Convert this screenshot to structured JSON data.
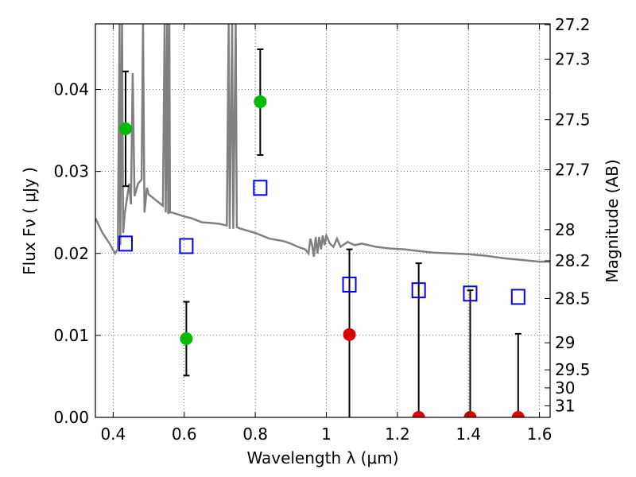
{
  "chart_data": {
    "type": "scatter",
    "xlabel": "Wavelength  λ (μm)",
    "ylabel": "Flux  Fν  ( μJy )",
    "y2label": "Magnitude (AB)",
    "xlim": [
      0.35,
      1.63
    ],
    "ylim": [
      0.0,
      0.048
    ],
    "grid": true,
    "grid_style": "dotted",
    "x_ticks": [
      0.4,
      0.6,
      0.8,
      1.0,
      1.2,
      1.4,
      1.6
    ],
    "x_tick_labels": [
      "0.4",
      "0.6",
      "0.8",
      "1",
      "1.2",
      "1.4",
      "1.6"
    ],
    "y_ticks": [
      0.0,
      0.01,
      0.02,
      0.03,
      0.04
    ],
    "y_tick_labels": [
      "0.00",
      "0.01",
      "0.02",
      "0.03",
      "0.04"
    ],
    "y2_ticks": [
      {
        "label": "27.2",
        "flux": 0.0479
      },
      {
        "label": "27.3",
        "flux": 0.0437
      },
      {
        "label": "27.5",
        "flux": 0.0363
      },
      {
        "label": "27.7",
        "flux": 0.0302
      },
      {
        "label": "28",
        "flux": 0.0229
      },
      {
        "label": "28.2",
        "flux": 0.0191
      },
      {
        "label": "28.5",
        "flux": 0.0145
      },
      {
        "label": "29",
        "flux": 0.0091
      },
      {
        "label": "29.5",
        "flux": 0.0058
      },
      {
        "label": "30",
        "flux": 0.0036
      },
      {
        "label": "31",
        "flux": 0.0014
      }
    ],
    "series": [
      {
        "marker": "filled-circle",
        "color": "#00bb00",
        "points": [
          {
            "x": 0.435,
            "y": 0.0352,
            "err_low": 0.0282,
            "err_high": 0.0422
          },
          {
            "x": 0.606,
            "y": 0.0096,
            "err_low": 0.0051,
            "err_high": 0.0141
          },
          {
            "x": 0.814,
            "y": 0.0385,
            "err_low": 0.032,
            "err_high": 0.0449
          }
        ]
      },
      {
        "marker": "filled-circle",
        "color": "#dd0000",
        "points": [
          {
            "x": 1.065,
            "y": 0.0101,
            "err_low": 0.0,
            "err_high": 0.0205
          },
          {
            "x": 1.26,
            "y": 0.0,
            "err_low": 0.0,
            "err_high": 0.0188
          },
          {
            "x": 1.405,
            "y": 0.0,
            "err_low": 0.0,
            "err_high": 0.0155
          },
          {
            "x": 1.54,
            "y": 0.0,
            "err_low": 0.0,
            "err_high": 0.0102
          }
        ]
      },
      {
        "marker": "open-square",
        "color": "#0000ee",
        "points": [
          {
            "x": 0.435,
            "y": 0.0212
          },
          {
            "x": 0.606,
            "y": 0.0209
          },
          {
            "x": 0.814,
            "y": 0.028
          },
          {
            "x": 1.065,
            "y": 0.0162
          },
          {
            "x": 1.26,
            "y": 0.0155
          },
          {
            "x": 1.405,
            "y": 0.0151
          },
          {
            "x": 1.54,
            "y": 0.0147
          }
        ]
      }
    ],
    "model_spectrum": {
      "color": "#808080",
      "points": [
        [
          0.35,
          0.0243
        ],
        [
          0.37,
          0.0225
        ],
        [
          0.39,
          0.0212
        ],
        [
          0.405,
          0.02
        ],
        [
          0.413,
          0.0205
        ],
        [
          0.418,
          0.048
        ],
        [
          0.42,
          0.021
        ],
        [
          0.425,
          0.048
        ],
        [
          0.428,
          0.0225
        ],
        [
          0.433,
          0.025
        ],
        [
          0.44,
          0.027
        ],
        [
          0.445,
          0.0285
        ],
        [
          0.45,
          0.026
        ],
        [
          0.455,
          0.042
        ],
        [
          0.46,
          0.027
        ],
        [
          0.47,
          0.0285
        ],
        [
          0.48,
          0.029
        ],
        [
          0.484,
          0.048
        ],
        [
          0.488,
          0.025
        ],
        [
          0.495,
          0.028
        ],
        [
          0.5,
          0.0272
        ],
        [
          0.52,
          0.0265
        ],
        [
          0.54,
          0.0258
        ],
        [
          0.545,
          0.048
        ],
        [
          0.548,
          0.025
        ],
        [
          0.552,
          0.048
        ],
        [
          0.555,
          0.0248
        ],
        [
          0.558,
          0.048
        ],
        [
          0.56,
          0.025
        ],
        [
          0.565,
          0.025
        ],
        [
          0.58,
          0.0248
        ],
        [
          0.6,
          0.0245
        ],
        [
          0.62,
          0.0243
        ],
        [
          0.65,
          0.0238
        ],
        [
          0.68,
          0.0237
        ],
        [
          0.7,
          0.0236
        ],
        [
          0.72,
          0.0234
        ],
        [
          0.725,
          0.048
        ],
        [
          0.728,
          0.023
        ],
        [
          0.735,
          0.048
        ],
        [
          0.738,
          0.023
        ],
        [
          0.745,
          0.048
        ],
        [
          0.748,
          0.0232
        ],
        [
          0.76,
          0.023
        ],
        [
          0.8,
          0.0225
        ],
        [
          0.84,
          0.0218
        ],
        [
          0.88,
          0.0215
        ],
        [
          0.9,
          0.0212
        ],
        [
          0.92,
          0.0208
        ],
        [
          0.94,
          0.0205
        ],
        [
          0.95,
          0.02
        ],
        [
          0.955,
          0.0218
        ],
        [
          0.96,
          0.021
        ],
        [
          0.965,
          0.0196
        ],
        [
          0.97,
          0.022
        ],
        [
          0.975,
          0.02
        ],
        [
          0.98,
          0.022
        ],
        [
          0.985,
          0.0205
        ],
        [
          0.99,
          0.0222
        ],
        [
          0.995,
          0.021
        ],
        [
          1.0,
          0.0222
        ],
        [
          1.01,
          0.0212
        ],
        [
          1.02,
          0.0208
        ],
        [
          1.03,
          0.0218
        ],
        [
          1.04,
          0.0208
        ],
        [
          1.06,
          0.0214
        ],
        [
          1.08,
          0.021
        ],
        [
          1.1,
          0.0212
        ],
        [
          1.14,
          0.0208
        ],
        [
          1.18,
          0.0206
        ],
        [
          1.22,
          0.0205
        ],
        [
          1.26,
          0.0203
        ],
        [
          1.3,
          0.0201
        ],
        [
          1.35,
          0.02
        ],
        [
          1.4,
          0.0199
        ],
        [
          1.45,
          0.0197
        ],
        [
          1.5,
          0.0194
        ],
        [
          1.55,
          0.0192
        ],
        [
          1.6,
          0.019
        ],
        [
          1.63,
          0.019
        ]
      ]
    }
  }
}
